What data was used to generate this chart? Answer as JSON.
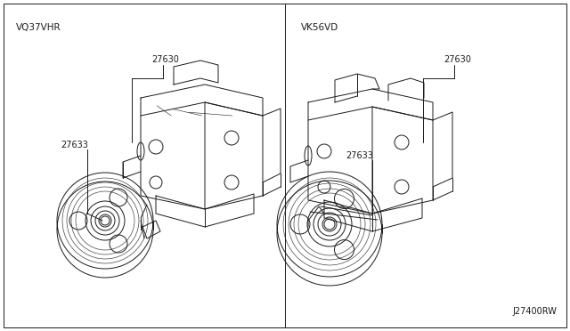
{
  "bg_color": "#ffffff",
  "border_color": "#aaaaaa",
  "line_color": "#1a1a1a",
  "text_color": "#1a1a1a",
  "left_engine": "VQ37VHR",
  "right_engine": "VK56VD",
  "part_27630": "27630",
  "part_27633": "27633",
  "catalog_num": "J27400RW",
  "font_size_engine": 7.5,
  "font_size_part": 7,
  "font_size_catalog": 7
}
